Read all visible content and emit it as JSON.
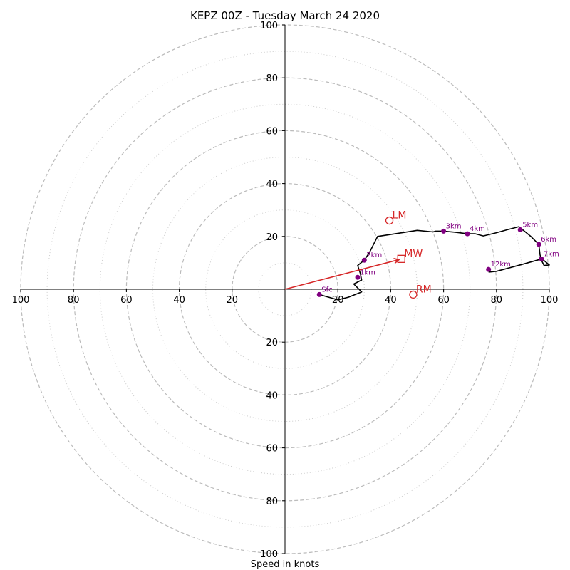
{
  "chart_data": {
    "type": "scatter",
    "title": "KEPZ 00Z - Tuesday March 24 2020",
    "xlabel": "Speed in knots",
    "ylabel": "",
    "xlim": [
      -100,
      100
    ],
    "ylim": [
      -100,
      100
    ],
    "rings_major": [
      20,
      40,
      60,
      80,
      100
    ],
    "rings_minor": [
      10,
      30,
      50,
      70,
      90
    ],
    "tick_labels": {
      "left": [
        "100",
        "80",
        "60",
        "40",
        "20"
      ],
      "right": [
        "20",
        "40",
        "60",
        "80",
        "100"
      ],
      "top": [
        "100",
        "80",
        "60",
        "40",
        "20"
      ],
      "bottom": [
        "20",
        "40",
        "60",
        "80",
        "100"
      ]
    },
    "hodograph_trace": [
      [
        13,
        -2
      ],
      [
        20,
        -4
      ],
      [
        24,
        -3
      ],
      [
        29,
        -1
      ],
      [
        26,
        2
      ],
      [
        29,
        3.5
      ],
      [
        28.5,
        6
      ],
      [
        27.5,
        9
      ],
      [
        30,
        11
      ],
      [
        32,
        14
      ],
      [
        35,
        20
      ],
      [
        45,
        21.5
      ],
      [
        50,
        22.3
      ],
      [
        56,
        21.7
      ],
      [
        57,
        22
      ],
      [
        60,
        22
      ],
      [
        65,
        21.5
      ],
      [
        69,
        21
      ],
      [
        72,
        21
      ],
      [
        75,
        20.2
      ],
      [
        80,
        21.4
      ],
      [
        84,
        22.5
      ],
      [
        88.5,
        23.7
      ],
      [
        93,
        20
      ],
      [
        96,
        17
      ],
      [
        96.5,
        13
      ],
      [
        97,
        11
      ],
      [
        98,
        9
      ],
      [
        100,
        9.2
      ],
      [
        97.2,
        11.5
      ],
      [
        90,
        9.5
      ],
      [
        80,
        6.8
      ],
      [
        77,
        6.5
      ]
    ],
    "height_markers": [
      {
        "label": "Sfc",
        "x": 13,
        "y": -2
      },
      {
        "label": "1km",
        "x": 27.5,
        "y": 4.5
      },
      {
        "label": "2km",
        "x": 30,
        "y": 11
      },
      {
        "label": "3km",
        "x": 60,
        "y": 22
      },
      {
        "label": "4km",
        "x": 69,
        "y": 21
      },
      {
        "label": "5km",
        "x": 89,
        "y": 22.5
      },
      {
        "label": "6km",
        "x": 96,
        "y": 17
      },
      {
        "label": "7km",
        "x": 97,
        "y": 11.5
      },
      {
        "label": "12km",
        "x": 77,
        "y": 7.5
      }
    ],
    "motion_markers": [
      {
        "label": "LM",
        "x": 39.5,
        "y": 26,
        "shape": "circle"
      },
      {
        "label": "MW",
        "x": 44,
        "y": 11.5,
        "shape": "square"
      },
      {
        "label": "RM",
        "x": 48.5,
        "y": -2,
        "shape": "circle"
      }
    ],
    "mean_wind_vector": {
      "x": 44,
      "y": 11.5
    },
    "colors": {
      "ring": "#bbbbbb",
      "trace": "#000000",
      "height_marker": "#800080",
      "motion": "#d62728"
    }
  }
}
